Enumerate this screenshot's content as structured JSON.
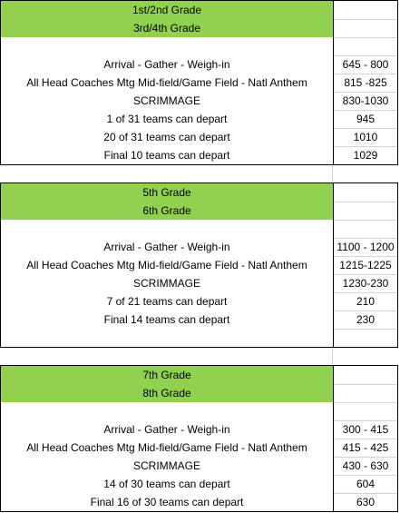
{
  "sections": [
    {
      "headers": [
        "1st/2nd Grade",
        "3rd/4th Grade"
      ],
      "rows": [
        [
          "Arrival - Gather - Weigh-in",
          "645 - 800"
        ],
        [
          "All Head Coaches Mtg Mid-field/Game Field - Natl Anthem",
          "815 -825"
        ],
        [
          "SCRIMMAGE",
          "830-1030"
        ],
        [
          "1 of 31 teams can depart",
          "945"
        ],
        [
          "20 of 31 teams can depart",
          "1010"
        ],
        [
          "Final 10 teams can depart",
          "1029"
        ]
      ]
    },
    {
      "headers": [
        "5th Grade",
        "6th Grade"
      ],
      "rows": [
        [
          "Arrival - Gather - Weigh-in",
          "1100 - 1200"
        ],
        [
          "All Head Coaches Mtg Mid-field/Game Field - Natl Anthem",
          "1215-1225"
        ],
        [
          "SCRIMMAGE",
          "1230-230"
        ],
        [
          "7 of 21 teams can depart",
          "210"
        ],
        [
          "Final 14 teams can depart",
          "230"
        ]
      ]
    },
    {
      "headers": [
        "7th Grade",
        "8th Grade"
      ],
      "rows": [
        [
          "Arrival - Gather - Weigh-in",
          "300 - 415"
        ],
        [
          "All Head Coaches Mtg Mid-field/Game Field - Natl Anthem",
          "415 - 425"
        ],
        [
          "SCRIMMAGE",
          "430 - 630"
        ],
        [
          "14 of 30 teams can depart",
          "604"
        ],
        [
          "Final 16 of 30 teams can depart",
          "630"
        ]
      ]
    }
  ]
}
